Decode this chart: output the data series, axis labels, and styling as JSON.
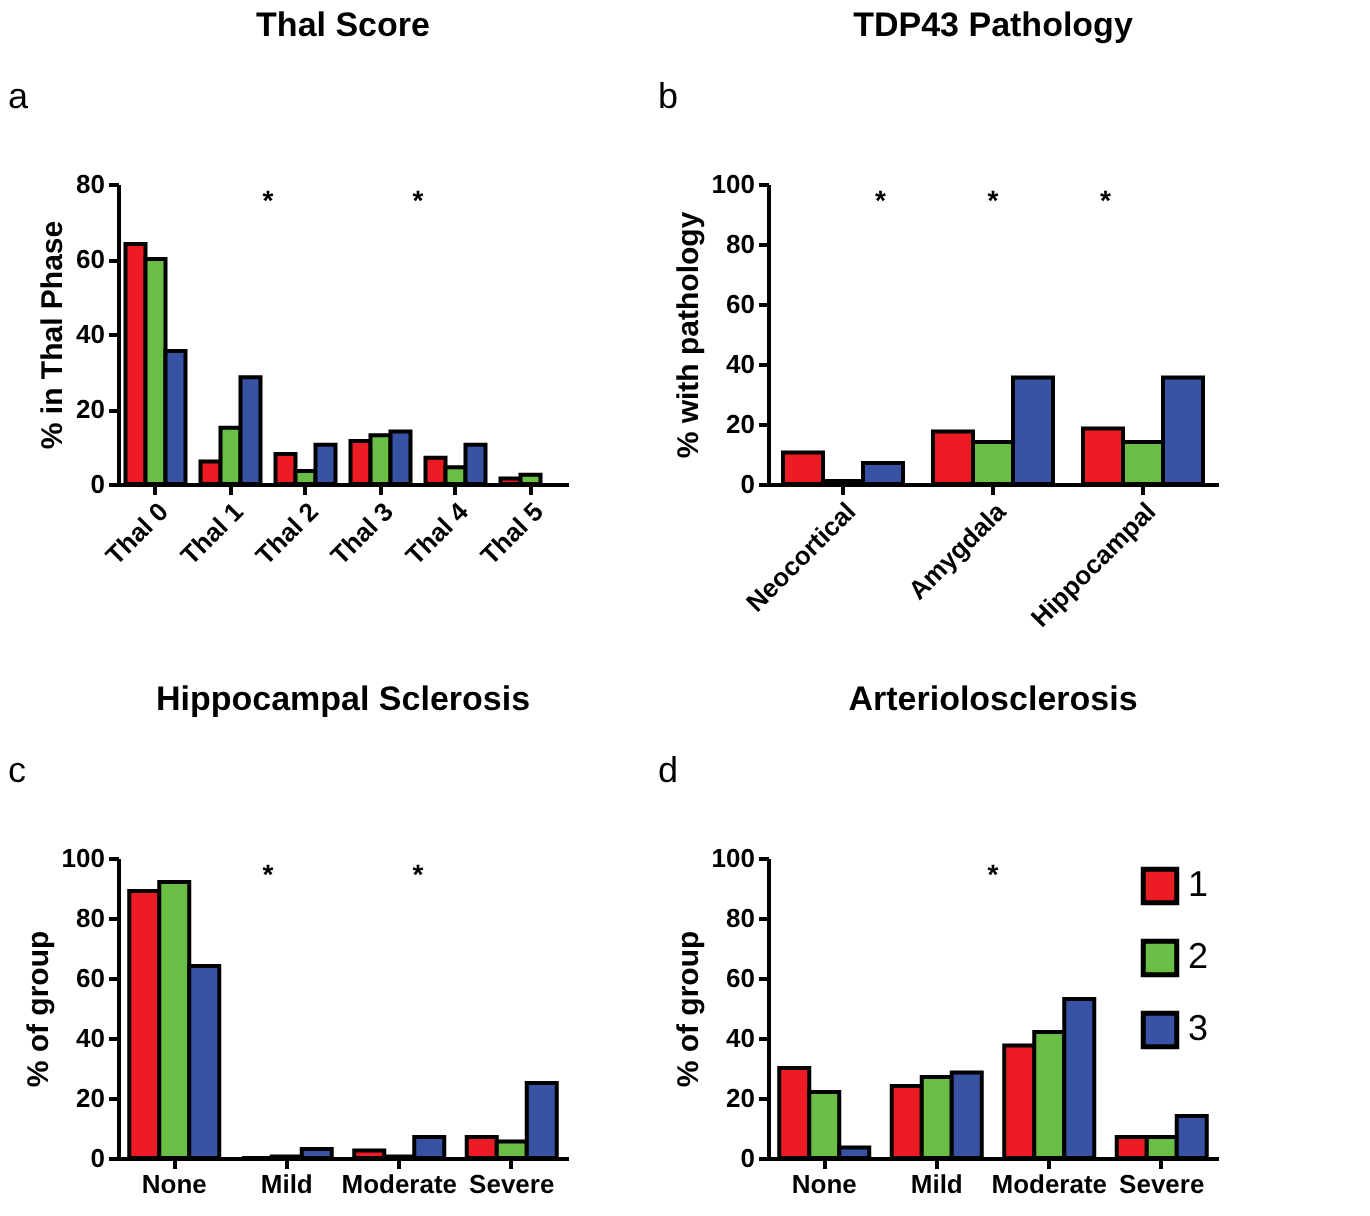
{
  "chart_data": [
    {
      "type": "bar",
      "title": "Thal Score",
      "ylabel": "% in Thal Phase",
      "categories": [
        "Thal 0",
        "Thal 1",
        "Thal 2",
        "Thal 3",
        "Thal 4",
        "Thal 5"
      ],
      "ylim": [
        0,
        80
      ],
      "yticks": [
        0,
        20,
        40,
        60,
        80
      ],
      "grid": false,
      "legend": false,
      "series": [
        {
          "color": "#ed1c24",
          "values": [
            64,
            6,
            8,
            11.5,
            7,
            1.5
          ]
        },
        {
          "color": "#6abd45",
          "values": [
            60,
            15,
            3.5,
            13,
            4.5,
            2.5
          ]
        },
        {
          "color": "#3953a4",
          "values": [
            35.5,
            28.5,
            10.5,
            14,
            10.5,
            null
          ]
        }
      ],
      "annotations": [
        "a",
        "*",
        "*"
      ]
    },
    {
      "type": "bar",
      "title": "TDP43 Pathology",
      "ylabel": "% with pathology",
      "categories": [
        "Neocortical",
        "Amygdala",
        "Hippocampal"
      ],
      "ylim": [
        0,
        100
      ],
      "yticks": [
        0,
        20,
        40,
        60,
        80,
        100
      ],
      "grid": false,
      "legend": false,
      "series": [
        {
          "color": "#ed1c24",
          "values": [
            10.5,
            17.5,
            18.5
          ]
        },
        {
          "color": "#6abd45",
          "values": [
            1,
            14,
            14
          ]
        },
        {
          "color": "#3953a4",
          "values": [
            7,
            35.5,
            35.5
          ]
        }
      ],
      "annotations": [
        "b",
        "*",
        "*",
        "*"
      ]
    },
    {
      "type": "bar",
      "title": "Hippocampal Sclerosis",
      "ylabel": "% of group",
      "categories": [
        "None",
        "Mild",
        "Moderate",
        "Severe"
      ],
      "ylim": [
        0,
        100
      ],
      "yticks": [
        0,
        20,
        40,
        60,
        80,
        100
      ],
      "grid": false,
      "legend": false,
      "series": [
        {
          "color": "#ed1c24",
          "values": [
            89,
            0,
            2.5,
            7
          ]
        },
        {
          "color": "#6abd45",
          "values": [
            92,
            0.5,
            0.5,
            5.5
          ]
        },
        {
          "color": "#3953a4",
          "values": [
            64,
            3,
            7,
            25
          ]
        }
      ],
      "annotations": [
        "c",
        "*",
        "*"
      ]
    },
    {
      "type": "bar",
      "title": "Arteriolosclerosis",
      "ylabel": "% of group",
      "categories": [
        "None",
        "Mild",
        "Moderate",
        "Severe"
      ],
      "ylim": [
        0,
        100
      ],
      "yticks": [
        0,
        20,
        40,
        60,
        80,
        100
      ],
      "grid": false,
      "legend": "top right",
      "series": [
        {
          "name": "1",
          "color": "#ed1c24",
          "values": [
            30,
            24,
            37.5,
            7
          ]
        },
        {
          "name": "2",
          "color": "#6abd45",
          "values": [
            22,
            27,
            42,
            7
          ]
        },
        {
          "name": "3",
          "color": "#3953a4",
          "values": [
            3.5,
            28.5,
            53,
            14
          ]
        }
      ],
      "annotations": [
        "d",
        "*"
      ]
    }
  ]
}
